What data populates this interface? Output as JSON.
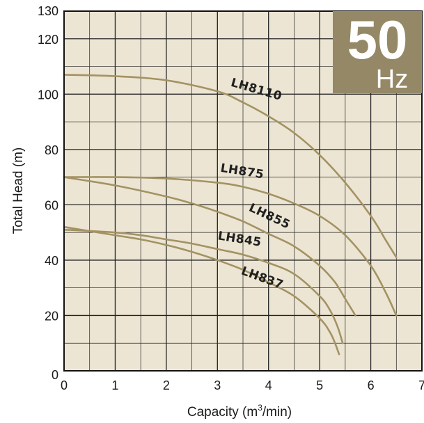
{
  "chart_data": {
    "type": "line",
    "xlabel": "Capacity (m",
    "xlabel_sup": "3",
    "xlabel_tail": "/min)",
    "ylabel": "Total Head (m)",
    "xlim": [
      0,
      7
    ],
    "ylim": [
      0,
      130
    ],
    "x_ticks": [
      0,
      1,
      2,
      3,
      4,
      5,
      6,
      7
    ],
    "y_ticks": [
      0,
      20,
      40,
      60,
      80,
      100,
      120,
      130
    ],
    "grid": true,
    "badge": {
      "number": "50",
      "unit": "Hz"
    },
    "colors": {
      "curve": "#a39263",
      "badge": "#958866",
      "grid": "#222222",
      "background": "#ece5d3"
    },
    "series": [
      {
        "name": "LH8110",
        "x": [
          0,
          1,
          2,
          3,
          3.5,
          4,
          4.5,
          5,
          5.5,
          6,
          6.3,
          6.5
        ],
        "y": [
          107,
          106.5,
          105,
          101,
          97,
          92,
          86,
          78,
          68,
          56,
          47,
          41
        ]
      },
      {
        "name": "LH875",
        "x": [
          0,
          1,
          2,
          3,
          3.5,
          4,
          4.5,
          5,
          5.5,
          6,
          6.3,
          6.5
        ],
        "y": [
          70,
          70,
          69.5,
          68,
          66.5,
          64,
          60.5,
          56,
          49,
          38,
          28,
          20
        ]
      },
      {
        "name": "LH855",
        "x": [
          0,
          1,
          2,
          2.5,
          3,
          3.5,
          4,
          4.5,
          5,
          5.3,
          5.5,
          5.7
        ],
        "y": [
          70,
          67,
          63,
          60.5,
          57.5,
          54,
          49.5,
          45,
          38,
          32,
          26,
          20
        ]
      },
      {
        "name": "LH845",
        "x": [
          0,
          1,
          1.5,
          2,
          2.5,
          3,
          3.5,
          4,
          4.5,
          5,
          5.2,
          5.35,
          5.45
        ],
        "y": [
          51,
          50,
          49,
          47.5,
          46,
          44,
          42,
          39,
          35,
          27,
          22,
          16,
          10
        ]
      },
      {
        "name": "LH837",
        "x": [
          0,
          1,
          1.5,
          2,
          2.5,
          3,
          3.5,
          4,
          4.5,
          5,
          5.2,
          5.3,
          5.38
        ],
        "y": [
          52,
          49,
          47.5,
          45.5,
          43,
          40,
          36.5,
          32,
          27,
          19,
          14,
          10,
          6
        ]
      }
    ]
  }
}
